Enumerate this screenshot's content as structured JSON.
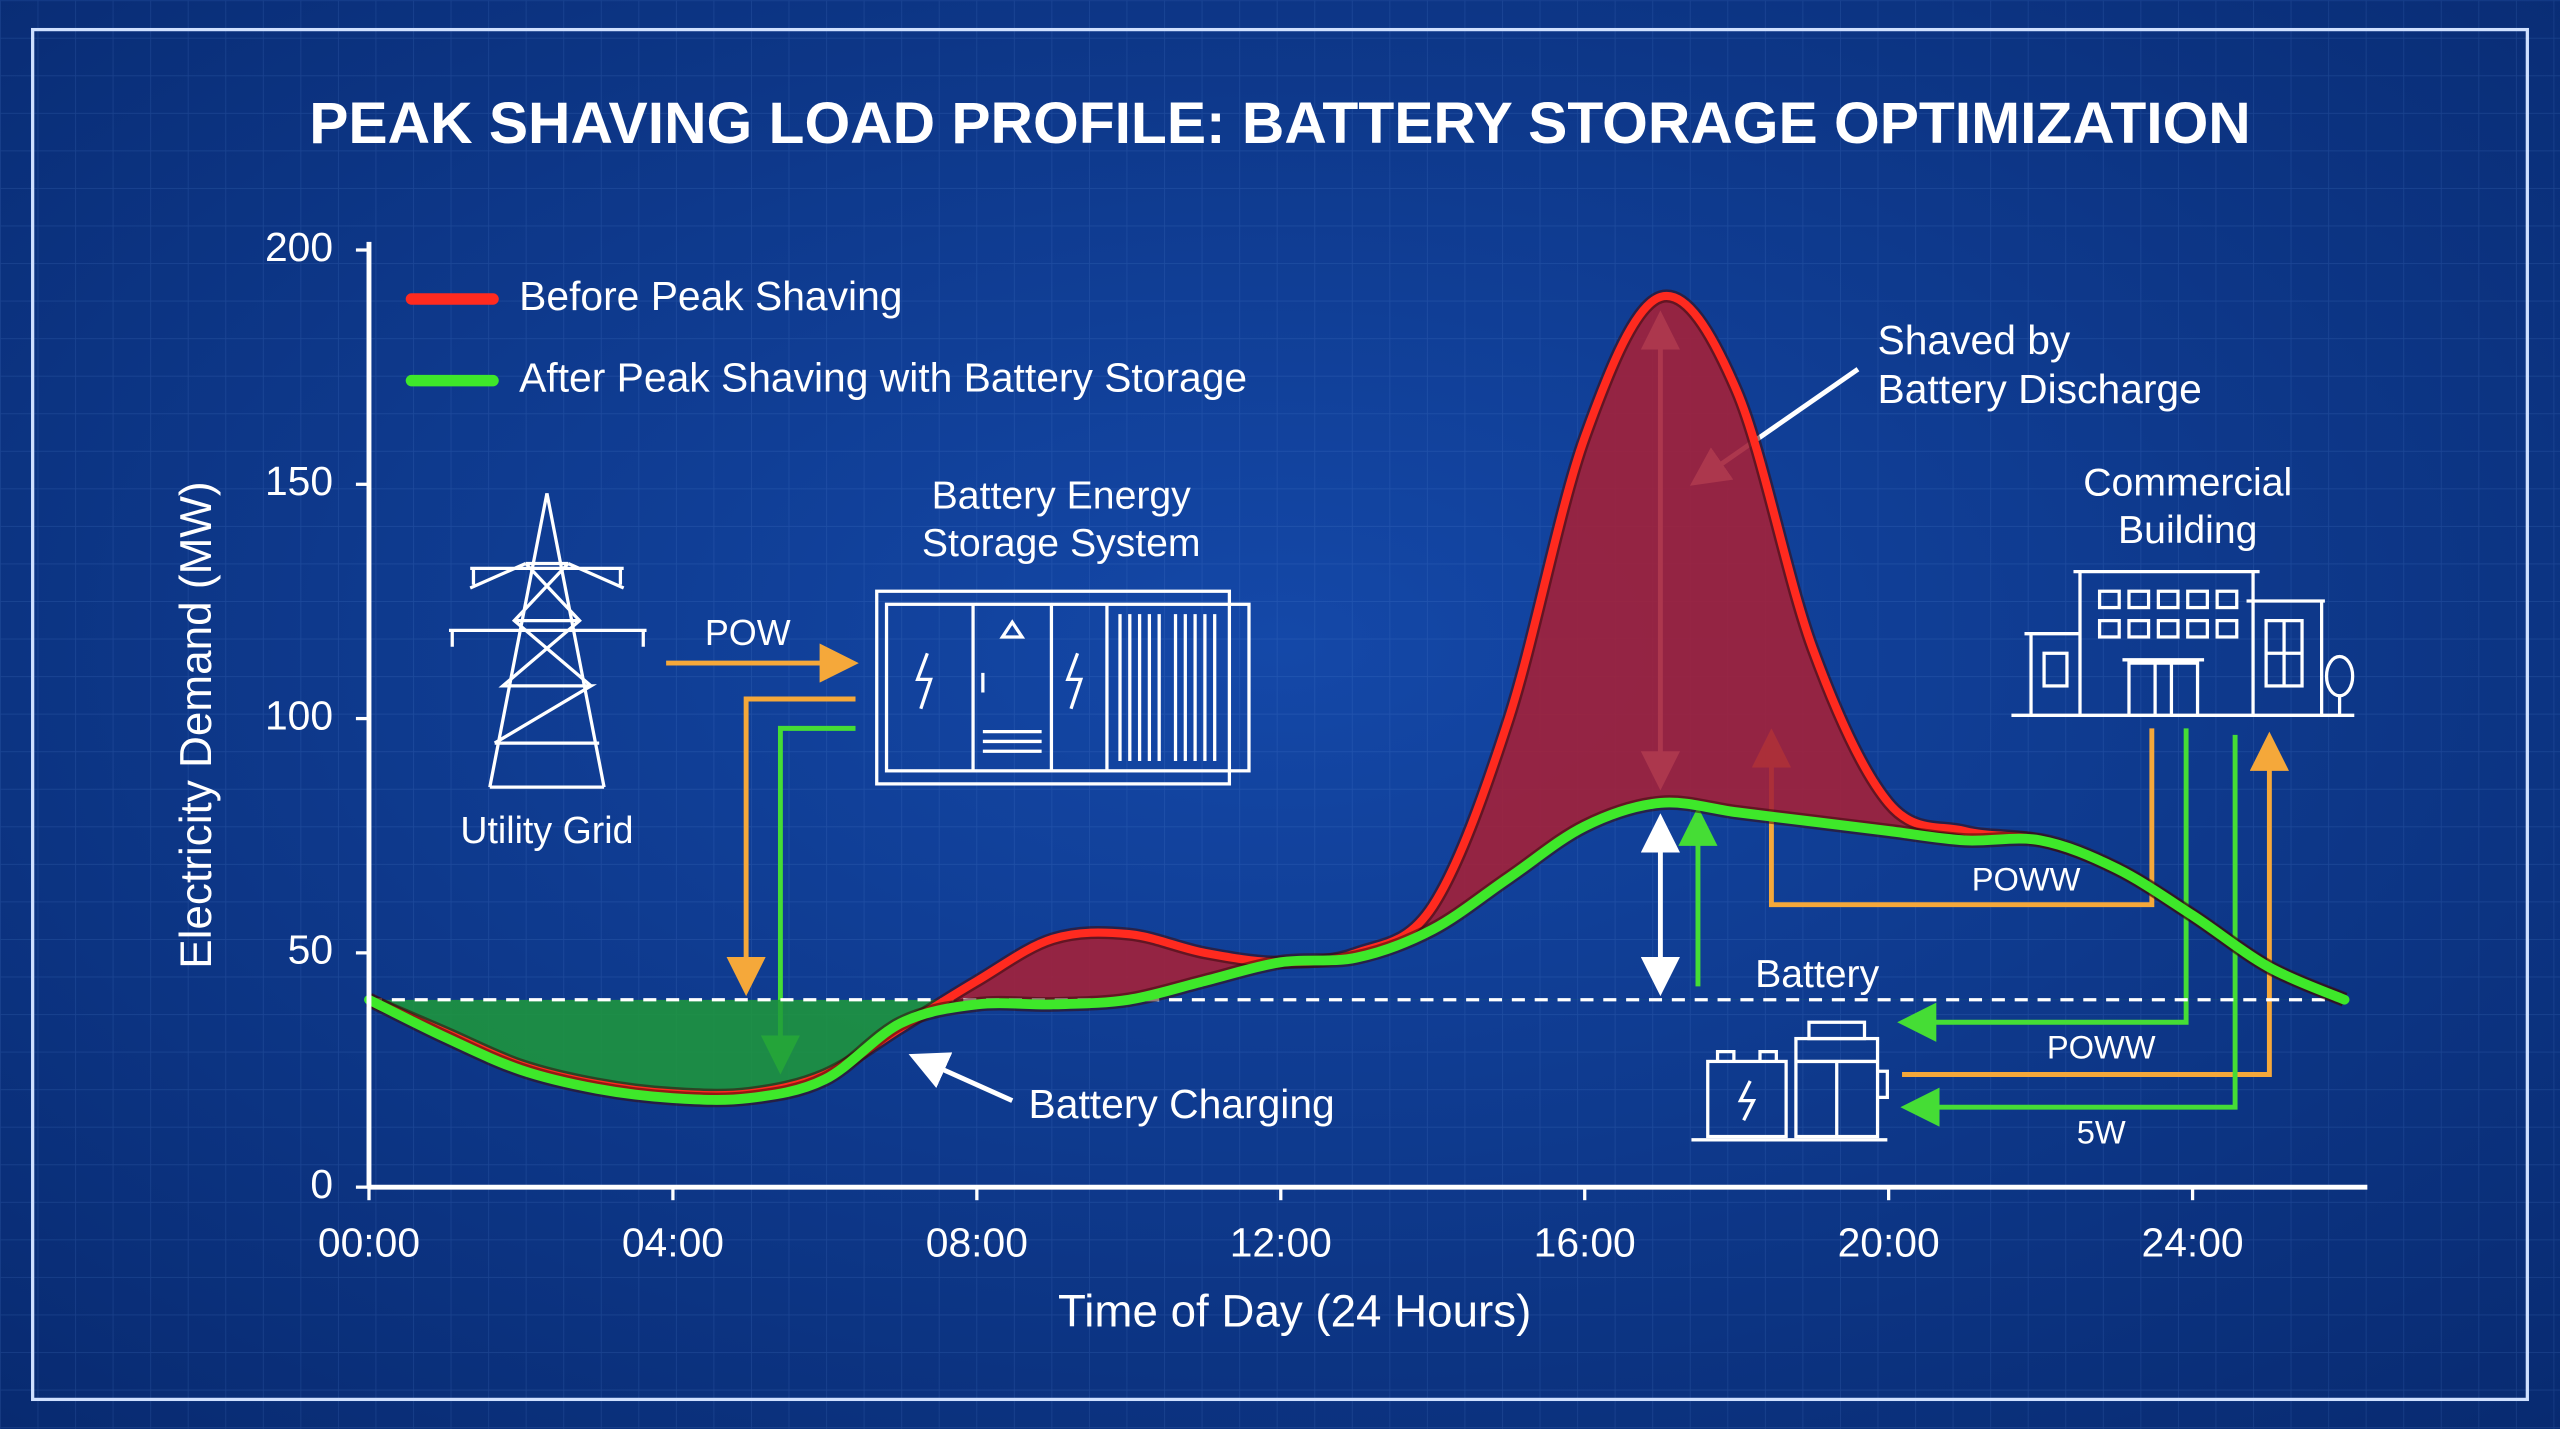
{
  "chart_data": {
    "type": "line",
    "title": "PEAK SHAVING LOAD PROFILE: BATTERY STORAGE OPTIMIZATION",
    "xlabel": "Time of Day (24 Hours)",
    "ylabel": "Electricity Demand (MW)",
    "x": [
      0,
      1,
      2,
      3,
      4,
      5,
      6,
      7,
      8,
      9,
      10,
      11,
      12,
      13,
      14,
      15,
      16,
      17,
      18,
      19,
      20,
      21,
      22,
      23,
      24,
      25,
      26
    ],
    "series": [
      {
        "name": "Before Peak Shaving",
        "color": "#ff2a1f",
        "values": [
          40,
          33,
          26,
          22,
          20,
          20,
          24,
          34,
          44,
          53,
          54,
          50,
          48,
          50,
          60,
          100,
          160,
          190,
          170,
          115,
          82,
          76,
          74,
          68,
          58,
          47,
          40
        ]
      },
      {
        "name": "After Peak Shaving with Battery Storage",
        "color": "#3ee82a",
        "values": [
          40,
          32,
          25,
          21,
          19,
          19,
          23,
          35,
          39,
          39,
          40,
          44,
          48,
          49,
          55,
          66,
          77,
          82,
          80,
          78,
          76,
          74,
          74,
          68,
          58,
          47,
          40
        ]
      }
    ],
    "reference_line": 40,
    "xlim": [
      0,
      26.3
    ],
    "ylim": [
      0,
      200
    ],
    "xticks": [
      {
        "value": 0,
        "label": "00:00"
      },
      {
        "value": 4,
        "label": "04:00"
      },
      {
        "value": 8,
        "label": "08:00"
      },
      {
        "value": 12,
        "label": "12:00"
      },
      {
        "value": 16,
        "label": "16:00"
      },
      {
        "value": 20,
        "label": "20:00"
      },
      {
        "value": 24,
        "label": "24:00"
      }
    ],
    "yticks": [
      0,
      50,
      100,
      150,
      200
    ],
    "grid": false,
    "legend": "upper left",
    "annotations": [
      {
        "text": [
          "Shaved by",
          "Battery Discharge"
        ]
      },
      {
        "text": [
          "Battery Charging"
        ]
      },
      {
        "text": [
          "Battery Energy",
          "Storage System"
        ]
      },
      {
        "text": [
          "Utility Grid"
        ]
      },
      {
        "text": [
          "Commercial",
          "Building"
        ]
      },
      {
        "text": [
          "Battery"
        ]
      },
      {
        "text": [
          "POW"
        ]
      },
      {
        "text": [
          "POWW"
        ]
      },
      {
        "text": [
          "POWW"
        ]
      },
      {
        "text": [
          "5W"
        ]
      }
    ]
  }
}
